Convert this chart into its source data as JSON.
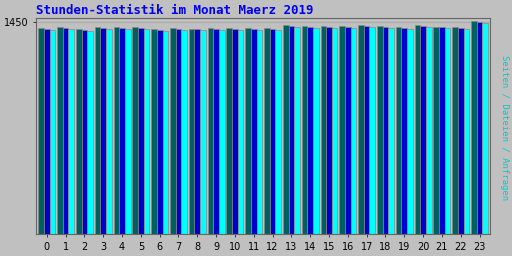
{
  "title": "Stunden-Statistik im Monat Maerz 2019",
  "title_color": "#0000ee",
  "title_fontsize": 9,
  "ylabel_text": "Seiten / Dateien / Anfragen",
  "ylabel_color": "#00cccc",
  "hours": [
    0,
    1,
    2,
    3,
    4,
    5,
    6,
    7,
    8,
    9,
    10,
    11,
    12,
    13,
    14,
    15,
    16,
    17,
    18,
    19,
    20,
    21,
    22,
    23
  ],
  "seiten": [
    1406,
    1414,
    1405,
    1416,
    1413,
    1413,
    1404,
    1406,
    1405,
    1407,
    1411,
    1410,
    1411,
    1432,
    1420,
    1422,
    1421,
    1430,
    1421,
    1417,
    1428,
    1419,
    1413,
    1457
  ],
  "dateien": [
    1401,
    1408,
    1396,
    1410,
    1407,
    1408,
    1398,
    1400,
    1399,
    1401,
    1405,
    1405,
    1405,
    1426,
    1414,
    1416,
    1415,
    1424,
    1414,
    1410,
    1422,
    1413,
    1408,
    1450
  ],
  "anfragen": [
    1394,
    1402,
    1389,
    1403,
    1400,
    1401,
    1391,
    1394,
    1392,
    1395,
    1398,
    1398,
    1398,
    1419,
    1407,
    1409,
    1408,
    1417,
    1407,
    1403,
    1415,
    1407,
    1401,
    1443
  ],
  "color_seiten": "#006060",
  "color_dateien": "#0000cc",
  "color_anfragen": "#00ffff",
  "ylim_min": 0,
  "ylim_max": 1475,
  "ytick_val": 1450,
  "ytick_pos": 1450,
  "bg_color": "#c0c0c0",
  "plot_bg_color": "#c0c0c0",
  "bar_width": 0.3,
  "grid_color": "#aaaaaa",
  "grid_linewidth": 0.8
}
